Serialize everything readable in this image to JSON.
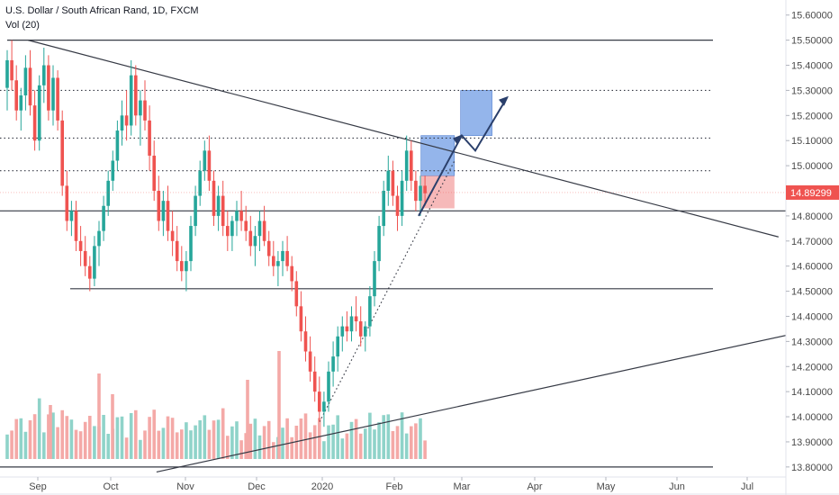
{
  "legend": {
    "title": "U.S. Dollar / South African Rand, 1D, FXCM",
    "indicator": "Vol (20)"
  },
  "current_price": "14.89299",
  "colors": {
    "up": "#26a69a",
    "down": "#ef5350",
    "vol_up": "#8fd3c9",
    "vol_down": "#f4a9a7",
    "price_tag": "#ef5350",
    "target_box": "#5b8ee0",
    "stop_box": "#f08a8a",
    "line": "#363a45",
    "arrow": "#2a3f6b"
  },
  "chart_data": {
    "type": "candlestick",
    "symbol": "USDZAR",
    "timeframe": "1D",
    "y_axis": {
      "ticks": [
        "15.60000",
        "15.50000",
        "15.40000",
        "15.30000",
        "15.20000",
        "15.10000",
        "15.00000",
        "14.90000",
        "14.80000",
        "14.70000",
        "14.60000",
        "14.50000",
        "14.40000",
        "14.30000",
        "14.20000",
        "14.10000",
        "14.00000",
        "13.90000",
        "13.80000"
      ],
      "range": [
        13.76,
        15.66
      ]
    },
    "x_axis": {
      "ticks": [
        "Sep",
        "Oct",
        "Nov",
        "Dec",
        "2020",
        "Feb",
        "Mar",
        "Apr",
        "May",
        "Jun",
        "Jul"
      ]
    },
    "horizontal_levels": [
      {
        "price": 15.5,
        "style": "solid"
      },
      {
        "price": 15.3,
        "style": "dotted"
      },
      {
        "price": 15.11,
        "style": "dotted"
      },
      {
        "price": 14.98,
        "style": "dotted"
      },
      {
        "price": 14.82,
        "style": "solid"
      },
      {
        "price": 14.51,
        "style": "solid"
      },
      {
        "price": 13.8,
        "style": "solid"
      }
    ],
    "trendlines": [
      {
        "from": [
          "2019-08-28",
          15.5
        ],
        "to": [
          "2020-06-29",
          14.77
        ]
      },
      {
        "from": [
          "2019-10-20",
          13.78
        ],
        "to": [
          "2020-07-15",
          14.35
        ]
      }
    ],
    "projection_boxes": [
      {
        "kind": "target",
        "from": "2020-02-14",
        "to": "2020-02-28",
        "low": 14.96,
        "high": 15.12
      },
      {
        "kind": "stop",
        "from": "2020-02-14",
        "to": "2020-02-28",
        "low": 14.83,
        "high": 14.96
      },
      {
        "kind": "target",
        "from": "2020-03-02",
        "to": "2020-03-15",
        "low": 15.12,
        "high": 15.3
      }
    ],
    "candles_daily_ohlc_note": "approximate path reconstructed from the image",
    "candles": [
      [
        15.31,
        15.46,
        15.22,
        15.42
      ],
      [
        15.42,
        15.5,
        15.3,
        15.34
      ],
      [
        15.34,
        15.4,
        15.18,
        15.22
      ],
      [
        15.22,
        15.31,
        15.14,
        15.28
      ],
      [
        15.28,
        15.44,
        15.22,
        15.39
      ],
      [
        15.39,
        15.46,
        15.2,
        15.24
      ],
      [
        15.24,
        15.3,
        15.06,
        15.1
      ],
      [
        15.1,
        15.36,
        15.06,
        15.32
      ],
      [
        15.32,
        15.47,
        15.25,
        15.4
      ],
      [
        15.4,
        15.44,
        15.18,
        15.22
      ],
      [
        15.22,
        15.4,
        15.16,
        15.35
      ],
      [
        15.35,
        15.38,
        15.14,
        15.18
      ],
      [
        15.18,
        15.22,
        14.88,
        14.92
      ],
      [
        14.92,
        14.98,
        14.74,
        14.78
      ],
      [
        14.78,
        14.86,
        14.72,
        14.82
      ],
      [
        14.82,
        14.86,
        14.66,
        14.7
      ],
      [
        14.7,
        14.76,
        14.6,
        14.66
      ],
      [
        14.66,
        14.72,
        14.56,
        14.6
      ],
      [
        14.6,
        14.64,
        14.5,
        14.55
      ],
      [
        14.55,
        14.72,
        14.52,
        14.68
      ],
      [
        14.68,
        14.78,
        14.6,
        14.74
      ],
      [
        14.74,
        14.88,
        14.7,
        14.84
      ],
      [
        14.84,
        14.98,
        14.8,
        14.94
      ],
      [
        14.94,
        15.06,
        14.9,
        15.02
      ],
      [
        15.02,
        15.18,
        14.98,
        15.14
      ],
      [
        15.14,
        15.26,
        15.08,
        15.2
      ],
      [
        15.2,
        15.3,
        15.1,
        15.16
      ],
      [
        15.16,
        15.42,
        15.12,
        15.36
      ],
      [
        15.36,
        15.4,
        15.16,
        15.2
      ],
      [
        15.2,
        15.3,
        15.08,
        15.26
      ],
      [
        15.26,
        15.34,
        15.14,
        15.18
      ],
      [
        15.18,
        15.24,
        14.98,
        15.04
      ],
      [
        15.04,
        15.1,
        14.86,
        14.9
      ],
      [
        14.9,
        14.96,
        14.74,
        14.78
      ],
      [
        14.78,
        14.9,
        14.72,
        14.86
      ],
      [
        14.86,
        14.92,
        14.7,
        14.74
      ],
      [
        14.74,
        14.82,
        14.64,
        14.7
      ],
      [
        14.7,
        14.76,
        14.58,
        14.62
      ],
      [
        14.62,
        14.68,
        14.54,
        14.58
      ],
      [
        14.58,
        14.66,
        14.5,
        14.62
      ],
      [
        14.62,
        14.8,
        14.58,
        14.76
      ],
      [
        14.76,
        14.92,
        14.72,
        14.88
      ],
      [
        14.88,
        15.02,
        14.84,
        14.98
      ],
      [
        14.98,
        15.1,
        14.94,
        15.06
      ],
      [
        15.06,
        15.12,
        14.9,
        14.94
      ],
      [
        14.94,
        14.98,
        14.76,
        14.8
      ],
      [
        14.8,
        14.92,
        14.74,
        14.88
      ],
      [
        14.88,
        14.94,
        14.72,
        14.76
      ],
      [
        14.76,
        14.82,
        14.66,
        14.72
      ],
      [
        14.72,
        14.8,
        14.66,
        14.78
      ],
      [
        14.78,
        14.86,
        14.72,
        14.82
      ],
      [
        14.82,
        14.9,
        14.74,
        14.78
      ],
      [
        14.78,
        14.84,
        14.7,
        14.74
      ],
      [
        14.74,
        14.8,
        14.64,
        14.68
      ],
      [
        14.68,
        14.76,
        14.6,
        14.72
      ],
      [
        14.72,
        14.82,
        14.66,
        14.78
      ],
      [
        14.78,
        14.84,
        14.68,
        14.7
      ],
      [
        14.7,
        14.74,
        14.6,
        14.64
      ],
      [
        14.64,
        14.7,
        14.56,
        14.6
      ],
      [
        14.6,
        14.66,
        14.52,
        14.62
      ],
      [
        14.62,
        14.7,
        14.56,
        14.66
      ],
      [
        14.66,
        14.72,
        14.58,
        14.6
      ],
      [
        14.6,
        14.64,
        14.5,
        14.54
      ],
      [
        14.54,
        14.58,
        14.4,
        14.44
      ],
      [
        14.44,
        14.5,
        14.3,
        14.34
      ],
      [
        14.34,
        14.4,
        14.22,
        14.26
      ],
      [
        14.26,
        14.32,
        14.14,
        14.18
      ],
      [
        14.18,
        14.24,
        14.06,
        14.1
      ],
      [
        14.1,
        14.16,
        13.98,
        14.02
      ],
      [
        14.02,
        14.1,
        13.96,
        14.06
      ],
      [
        14.06,
        14.22,
        14.02,
        14.18
      ],
      [
        14.18,
        14.3,
        14.12,
        14.24
      ],
      [
        14.24,
        14.36,
        14.18,
        14.32
      ],
      [
        14.32,
        14.4,
        14.26,
        14.36
      ],
      [
        14.36,
        14.42,
        14.3,
        14.34
      ],
      [
        14.34,
        14.44,
        14.3,
        14.4
      ],
      [
        14.4,
        14.48,
        14.34,
        14.38
      ],
      [
        14.38,
        14.44,
        14.28,
        14.32
      ],
      [
        14.32,
        14.38,
        14.26,
        14.36
      ],
      [
        14.36,
        14.52,
        14.32,
        14.48
      ],
      [
        14.48,
        14.66,
        14.44,
        14.62
      ],
      [
        14.62,
        14.8,
        14.58,
        14.76
      ],
      [
        14.76,
        14.94,
        14.72,
        14.9
      ],
      [
        14.9,
        15.04,
        14.84,
        14.98
      ],
      [
        14.98,
        15.02,
        14.84,
        14.88
      ],
      [
        14.88,
        14.92,
        14.74,
        14.8
      ],
      [
        14.8,
        14.98,
        14.76,
        14.94
      ],
      [
        14.94,
        15.12,
        14.9,
        15.06
      ],
      [
        15.06,
        15.1,
        14.9,
        14.94
      ],
      [
        14.94,
        14.98,
        14.82,
        14.86
      ],
      [
        14.86,
        14.96,
        14.8,
        14.92
      ],
      [
        14.92,
        14.96,
        14.84,
        14.89
      ]
    ],
    "volume_note": "relative daily volume bars"
  }
}
